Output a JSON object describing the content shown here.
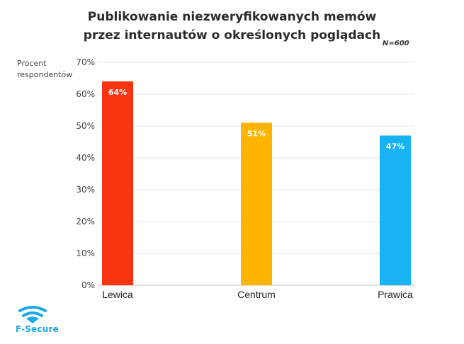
{
  "chart_data": {
    "type": "bar",
    "title_line1": "Publikowanie niezweryfikowanych memów",
    "title_line2": "przez internautów o określonych poglądach",
    "note": "N=600",
    "ylabel_line1": "Procent",
    "ylabel_line2": "respondentów",
    "xlabel": "",
    "categories": [
      "Lewica",
      "Centrum",
      "Prawica"
    ],
    "values": [
      64,
      51,
      47
    ],
    "data_labels": [
      "64%",
      "51%",
      "47%"
    ],
    "colors": [
      "#fa3410",
      "#ffb401",
      "#17b3f3"
    ],
    "ylim": [
      0,
      70
    ],
    "yticks": [
      0,
      10,
      20,
      30,
      40,
      50,
      60,
      70
    ],
    "ytick_labels": [
      "0%",
      "10%",
      "20%",
      "30%",
      "40%",
      "50%",
      "60%",
      "70%"
    ],
    "grid": true
  },
  "brand": {
    "name": "F-Secure",
    "color": "#1aa9e6"
  }
}
